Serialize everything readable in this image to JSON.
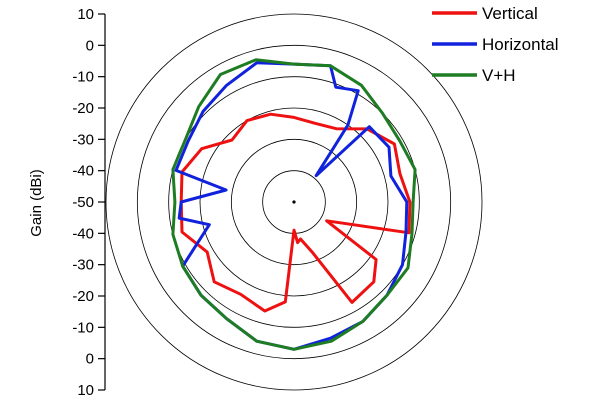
{
  "chart_data": {
    "type": "polar-line",
    "title": "",
    "ylabel": "Gain (dBi)",
    "r_range_dbi": [
      -50,
      10
    ],
    "ring_values_dbi": [
      10,
      0,
      -10,
      -20,
      -30,
      -40
    ],
    "y_ticks": [
      "10",
      "0",
      "-10",
      "-20",
      "-30",
      "-40",
      "-50",
      "-40",
      "-30",
      "-20",
      "-10",
      "0",
      "10"
    ],
    "legend_position": "top-right",
    "grid": true,
    "series": [
      {
        "name": "Vertical",
        "color": "#ee1111",
        "points": [
          [
            0,
            -23
          ],
          [
            15,
            -24
          ],
          [
            30,
            -23
          ],
          [
            45,
            -17
          ],
          [
            60,
            -13
          ],
          [
            75,
            -15
          ],
          [
            90,
            -13
          ],
          [
            105,
            -12
          ],
          [
            120,
            -38
          ],
          [
            125,
            -18
          ],
          [
            135,
            -14
          ],
          [
            150,
            -13
          ],
          [
            160,
            -33
          ],
          [
            170,
            -38
          ],
          [
            175,
            -37
          ],
          [
            180,
            -41
          ],
          [
            185,
            -18
          ],
          [
            195,
            -14
          ],
          [
            210,
            -16
          ],
          [
            225,
            -14
          ],
          [
            240,
            -18
          ],
          [
            255,
            -13
          ],
          [
            270,
            -14
          ],
          [
            285,
            -13
          ],
          [
            300,
            -16
          ],
          [
            315,
            -22
          ],
          [
            330,
            -20
          ],
          [
            345,
            -21
          ],
          [
            360,
            -23
          ]
        ]
      },
      {
        "name": "Horizontal",
        "color": "#1122dd",
        "points": [
          [
            0,
            -6
          ],
          [
            15,
            -5
          ],
          [
            20,
            -11
          ],
          [
            30,
            -9
          ],
          [
            35,
            -20
          ],
          [
            40,
            -39
          ],
          [
            45,
            -16
          ],
          [
            60,
            -15
          ],
          [
            75,
            -18
          ],
          [
            90,
            -14
          ],
          [
            105,
            -13
          ],
          [
            120,
            -10
          ],
          [
            135,
            -8
          ],
          [
            150,
            -6
          ],
          [
            165,
            -5
          ],
          [
            180,
            -3
          ],
          [
            195,
            -4
          ],
          [
            210,
            -7
          ],
          [
            225,
            -8
          ],
          [
            240,
            -9
          ],
          [
            255,
            -22
          ],
          [
            262,
            -13
          ],
          [
            270,
            -14
          ],
          [
            280,
            -28
          ],
          [
            285,
            -11
          ],
          [
            300,
            -11
          ],
          [
            315,
            -9
          ],
          [
            330,
            -7
          ],
          [
            345,
            -4
          ],
          [
            360,
            -6
          ]
        ]
      },
      {
        "name": "V+H",
        "color": "#1e7d22",
        "points": [
          [
            0,
            -6
          ],
          [
            15,
            -5
          ],
          [
            30,
            -7
          ],
          [
            45,
            -10
          ],
          [
            60,
            -11
          ],
          [
            75,
            -10
          ],
          [
            90,
            -12
          ],
          [
            105,
            -11
          ],
          [
            120,
            -8
          ],
          [
            135,
            -8
          ],
          [
            150,
            -6
          ],
          [
            165,
            -4
          ],
          [
            180,
            -3
          ],
          [
            195,
            -4
          ],
          [
            210,
            -7
          ],
          [
            225,
            -8
          ],
          [
            240,
            -9
          ],
          [
            255,
            -10
          ],
          [
            270,
            -12
          ],
          [
            285,
            -10
          ],
          [
            300,
            -10
          ],
          [
            315,
            -7
          ],
          [
            330,
            -3
          ],
          [
            345,
            -3
          ],
          [
            360,
            -6
          ]
        ]
      }
    ]
  }
}
